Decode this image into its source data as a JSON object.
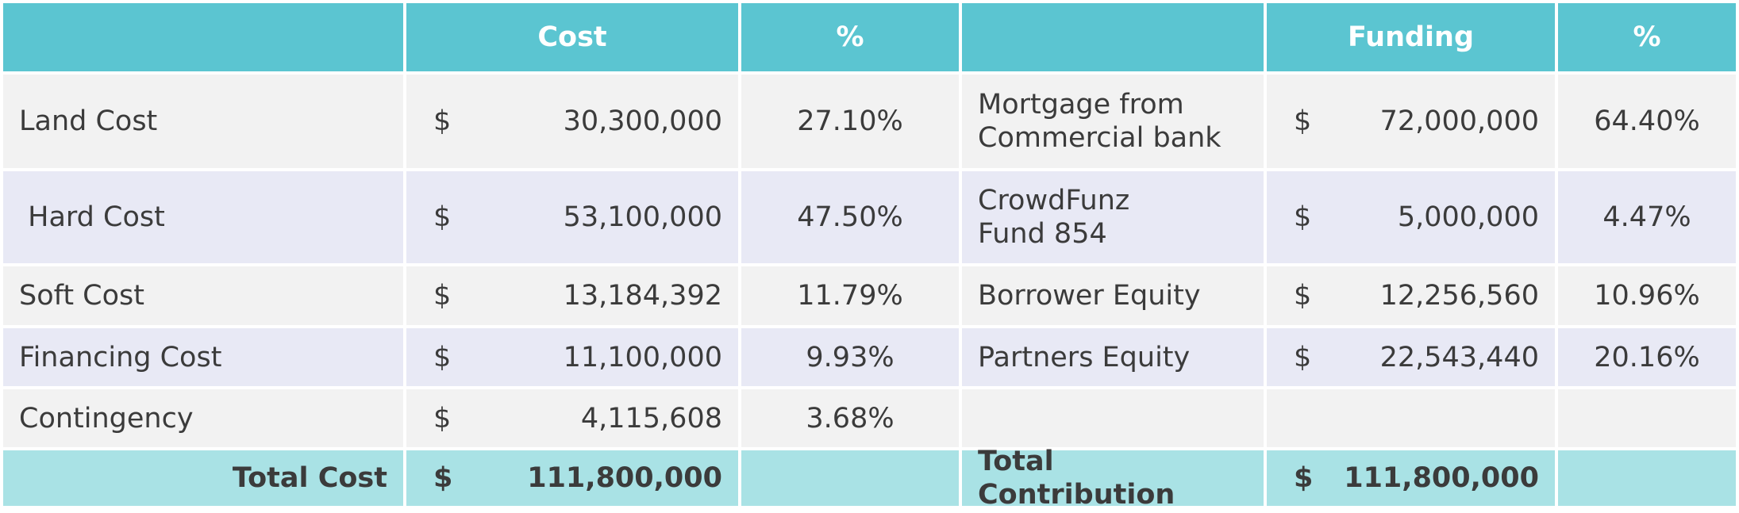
{
  "table": {
    "currency": "$",
    "header": {
      "cost": "Cost",
      "cost_pct": "%",
      "funding": "Funding",
      "funding_pct": "%"
    },
    "rows": [
      {
        "cost_item": "Land Cost",
        "cost": "30,300,000",
        "cost_pct": "27.10%",
        "funding_item": "Mortgage from\nCommercial bank",
        "funding": "72,000,000",
        "funding_pct": "64.40%"
      },
      {
        "cost_item": " Hard Cost",
        "cost": "53,100,000",
        "cost_pct": "47.50%",
        "funding_item": "CrowdFunz\nFund 854",
        "funding": "5,000,000",
        "funding_pct": "4.47%"
      },
      {
        "cost_item": "Soft Cost",
        "cost": "13,184,392",
        "cost_pct": "11.79%",
        "funding_item": "Borrower Equity",
        "funding": "12,256,560",
        "funding_pct": "10.96%"
      },
      {
        "cost_item": "Financing Cost",
        "cost": "11,100,000",
        "cost_pct": "9.93%",
        "funding_item": "Partners Equity",
        "funding": "22,543,440",
        "funding_pct": "20.16%"
      },
      {
        "cost_item": "Contingency",
        "cost": "4,115,608",
        "cost_pct": "3.68%"
      }
    ],
    "total": {
      "cost_label": "Total Cost",
      "cost": "111,800,000",
      "funding_label": "Total Contribution",
      "funding": "111,800,000"
    }
  }
}
